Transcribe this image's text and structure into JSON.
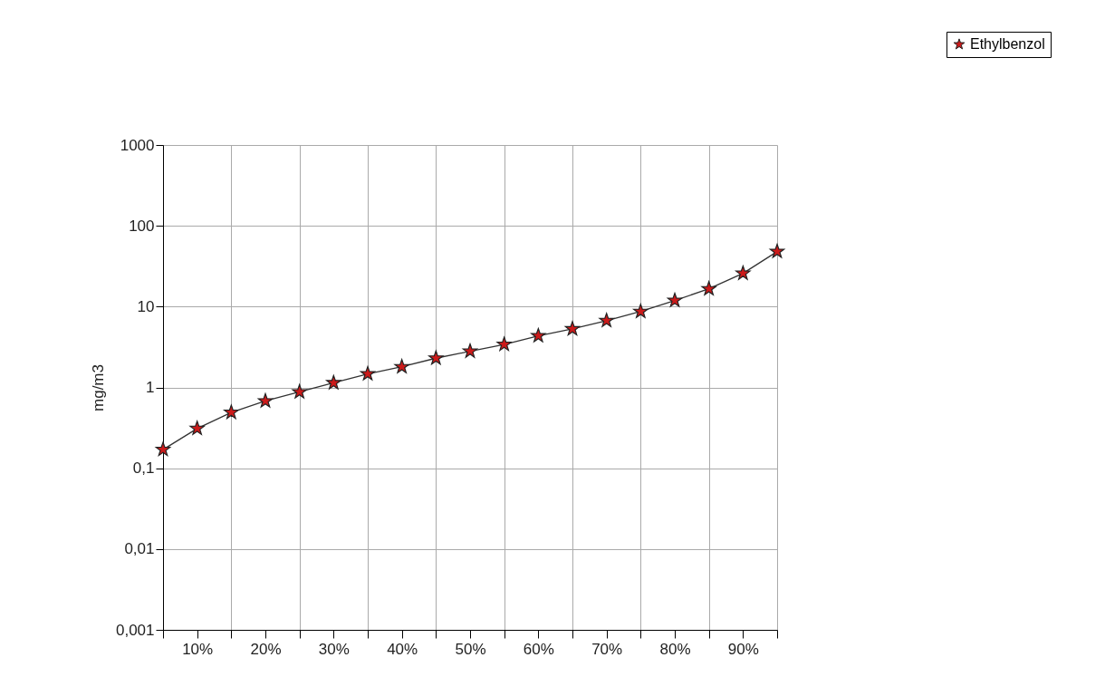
{
  "chart_data": {
    "type": "line",
    "ylabel": "mg/m3",
    "x": [
      5,
      10,
      15,
      20,
      25,
      30,
      35,
      40,
      45,
      50,
      55,
      60,
      65,
      70,
      75,
      80,
      85,
      90,
      95
    ],
    "series": [
      {
        "name": "Ethylbenzol",
        "color": "#cc1a1a",
        "values": [
          0.17,
          0.31,
          0.49,
          0.68,
          0.88,
          1.14,
          1.47,
          1.8,
          2.3,
          2.8,
          3.4,
          4.35,
          5.3,
          6.7,
          8.7,
          11.9,
          16.6,
          25.8,
          48
        ]
      }
    ],
    "xlim": [
      5,
      95
    ],
    "xticks": [
      {
        "value": 5,
        "label": null
      },
      {
        "value": 10,
        "label": "10%"
      },
      {
        "value": 15,
        "label": null
      },
      {
        "value": 20,
        "label": "20%"
      },
      {
        "value": 25,
        "label": null
      },
      {
        "value": 30,
        "label": "30%"
      },
      {
        "value": 35,
        "label": null
      },
      {
        "value": 40,
        "label": "40%"
      },
      {
        "value": 45,
        "label": null
      },
      {
        "value": 50,
        "label": "50%"
      },
      {
        "value": 55,
        "label": null
      },
      {
        "value": 60,
        "label": "60%"
      },
      {
        "value": 65,
        "label": null
      },
      {
        "value": 70,
        "label": "70%"
      },
      {
        "value": 75,
        "label": null
      },
      {
        "value": 80,
        "label": "80%"
      },
      {
        "value": 85,
        "label": null
      },
      {
        "value": 90,
        "label": "90%"
      },
      {
        "value": 95,
        "label": null
      }
    ],
    "ylim": [
      0.001,
      1000
    ],
    "yticks": [
      {
        "value": 0.001,
        "label": "0,001"
      },
      {
        "value": 0.01,
        "label": "0,01"
      },
      {
        "value": 0.1,
        "label": "0,1"
      },
      1,
      10,
      100,
      1000
    ],
    "log": true,
    "grid": true,
    "legend": "top right",
    "marker": "star",
    "line_style": "solid"
  }
}
